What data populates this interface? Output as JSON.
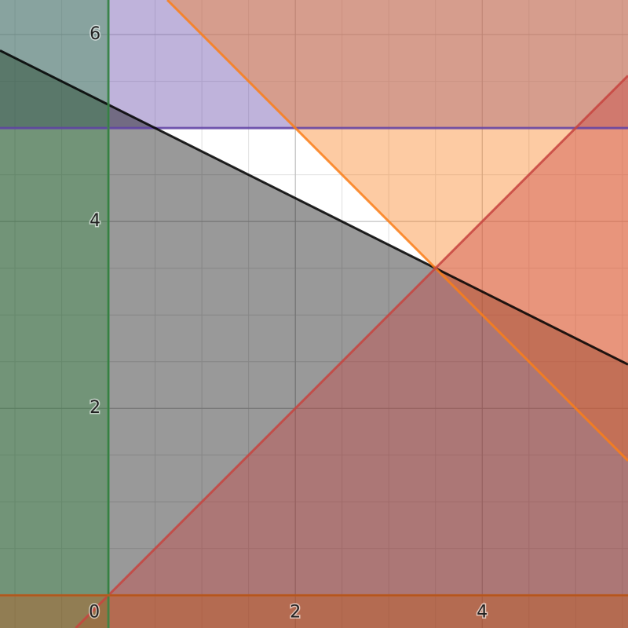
{
  "chart_data": {
    "type": "inequalities",
    "xlim": [
      -1.16,
      5.56
    ],
    "ylim": [
      -0.35,
      6.37
    ],
    "xticks": [
      0,
      2,
      4
    ],
    "yticks": [
      2,
      4,
      6
    ],
    "grid": true,
    "minor_grid_step": 0.5,
    "regions": [
      {
        "a": 0,
        "b": 1,
        "c": 5,
        "side": ">=",
        "color": "#6042a6"
      },
      {
        "a": 0.5,
        "b": 1,
        "c": 5.25,
        "side": "<=",
        "color": "#000000"
      },
      {
        "a": 1,
        "b": 1,
        "c": 7,
        "side": ">=",
        "color": "#fa7e19"
      },
      {
        "a": -1,
        "b": 1,
        "c": 0,
        "side": "<=",
        "color": "#c74440"
      },
      {
        "a": 1,
        "b": 0,
        "c": 0,
        "side": "<=",
        "color": "#388c46"
      },
      {
        "a": 0,
        "b": 1,
        "c": 0,
        "side": "<=",
        "color": "#c05a1c"
      }
    ]
  }
}
